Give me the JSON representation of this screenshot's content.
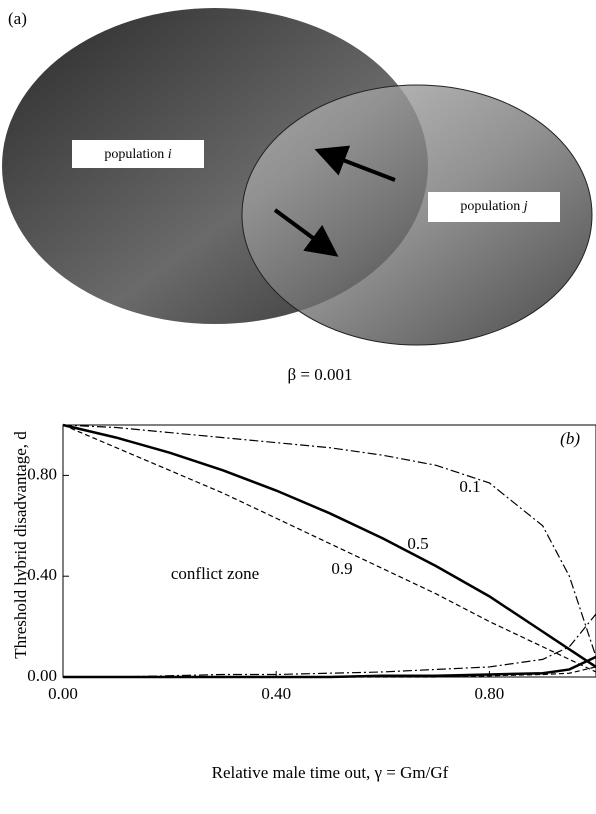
{
  "panel_a": {
    "label": "(a)",
    "population_i": {
      "text": "population",
      "index": "i"
    },
    "population_j": {
      "text": "population",
      "index": "j"
    }
  },
  "chart_data": {
    "type": "line",
    "title": "β = 0.001",
    "panel_label": "(b)",
    "x_label": "Relative male time out, γ = Gm/Gf",
    "y_label": "Threshold hybrid disadvantage, d",
    "annotation": "conflict zone",
    "x": [
      0,
      0.1,
      0.2,
      0.3,
      0.4,
      0.5,
      0.6,
      0.7,
      0.8,
      0.9,
      0.95,
      1.0
    ],
    "series": [
      {
        "name": "0.1",
        "style": "dashdot",
        "color": "#000000",
        "values": [
          1.0,
          0.99,
          0.97,
          0.95,
          0.93,
          0.91,
          0.88,
          0.84,
          0.77,
          0.6,
          0.4,
          0.08
        ],
        "lower_values": [
          0.0,
          0.0,
          0.005,
          0.01,
          0.01,
          0.015,
          0.02,
          0.03,
          0.04,
          0.07,
          0.12,
          0.25
        ]
      },
      {
        "name": "0.5",
        "style": "solid",
        "color": "#000000",
        "values": [
          1.0,
          0.95,
          0.89,
          0.82,
          0.74,
          0.65,
          0.55,
          0.44,
          0.32,
          0.18,
          0.11,
          0.04
        ],
        "lower_values": [
          0,
          0,
          0,
          0,
          0,
          0,
          0.005,
          0.005,
          0.01,
          0.015,
          0.03,
          0.08
        ]
      },
      {
        "name": "0.9",
        "style": "dashed",
        "color": "#000000",
        "values": [
          1.0,
          0.91,
          0.82,
          0.73,
          0.63,
          0.53,
          0.43,
          0.33,
          0.22,
          0.12,
          0.07,
          0.02
        ],
        "lower_values": [
          0,
          0,
          0,
          0,
          0,
          0,
          0,
          0,
          0.005,
          0.01,
          0.015,
          0.04
        ]
      }
    ],
    "xlim": [
      0,
      1
    ],
    "ylim": [
      0,
      1
    ],
    "xticks": [
      {
        "value": 0,
        "label": "0.00"
      },
      {
        "value": 0.4,
        "label": "0.40"
      },
      {
        "value": 0.8,
        "label": "0.80"
      }
    ],
    "yticks": [
      {
        "value": 0,
        "label": "0.00"
      },
      {
        "value": 0.4,
        "label": "0.40"
      },
      {
        "value": 0.8,
        "label": "0.80"
      }
    ]
  }
}
